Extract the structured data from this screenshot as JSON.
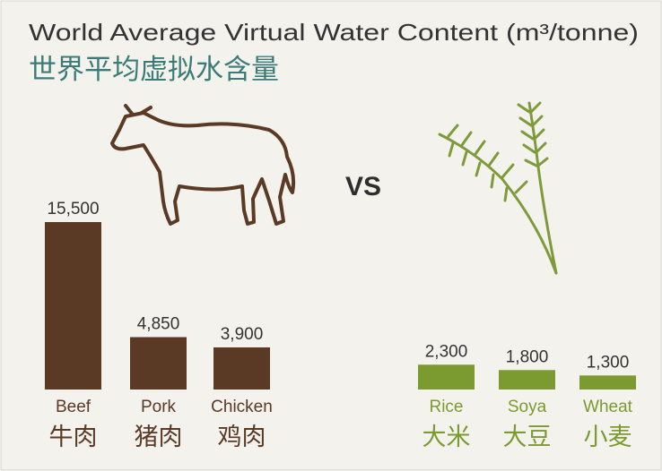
{
  "chart_data": {
    "type": "bar",
    "title": "World Average Virtual Water Content (m³/tonne)",
    "subtitle": "世界平均虚拟水含量",
    "annotation": "VS",
    "categories": [
      "Beef",
      "Pork",
      "Chicken",
      "Rice",
      "Soya",
      "Wheat"
    ],
    "categories_zh": [
      "牛肉",
      "猪肉",
      "鸡肉",
      "大米",
      "大豆",
      "小麦"
    ],
    "values": [
      15500,
      4850,
      3900,
      2300,
      1800,
      1300
    ],
    "value_labels": [
      "15,500",
      "4,850",
      "3,900",
      "2,300",
      "1,800",
      "1,300"
    ],
    "colors": [
      "#5a3a25",
      "#5a3a25",
      "#5a3a25",
      "#7b9a2f",
      "#7b9a2f",
      "#7b9a2f"
    ]
  }
}
